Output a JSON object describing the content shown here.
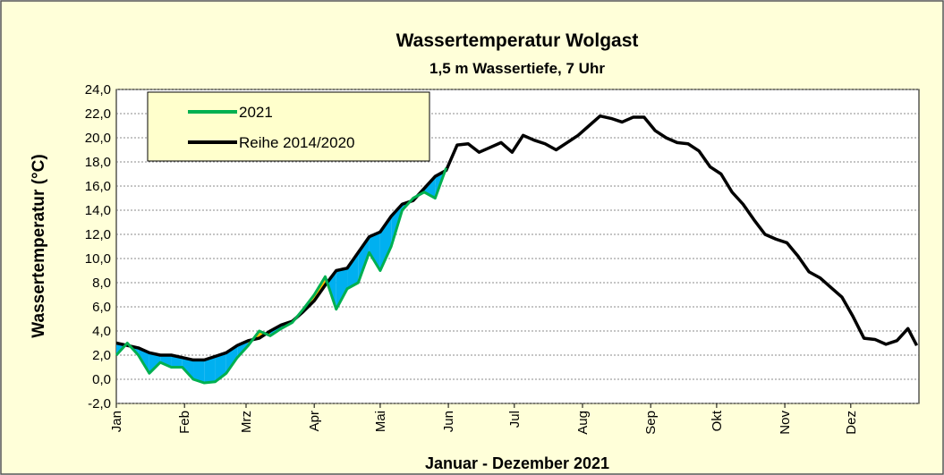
{
  "chart_data": {
    "type": "line",
    "title": "Wassertemperatur Wolgast",
    "subtitle": "1,5 m Wassertiefe, 7 Uhr",
    "xlabel": "Januar - Dezember 2021",
    "ylabel": "Wassertemperatur (°C)",
    "x": [
      0,
      5,
      10,
      15,
      20,
      25,
      30,
      35,
      40,
      45,
      50,
      55,
      60,
      65,
      70,
      75,
      80,
      85,
      90,
      95,
      100,
      105,
      110,
      115,
      120,
      125,
      130,
      135,
      140,
      145,
      150,
      155,
      160,
      165,
      170,
      175,
      180,
      185,
      190,
      195,
      200,
      205,
      210,
      215,
      220,
      225,
      230,
      235,
      240,
      245,
      250,
      255,
      260,
      265,
      270,
      275,
      280,
      285,
      290,
      295,
      300,
      305,
      310,
      315,
      320,
      325,
      330,
      335,
      340,
      345,
      350,
      355,
      360,
      364
    ],
    "xlim": [
      0,
      365
    ],
    "xticks": [
      {
        "value": 0,
        "label": "Jan"
      },
      {
        "value": 31,
        "label": "Feb"
      },
      {
        "value": 59,
        "label": "Mrz"
      },
      {
        "value": 90,
        "label": "Apr"
      },
      {
        "value": 120,
        "label": "Mai"
      },
      {
        "value": 151,
        "label": "Jun"
      },
      {
        "value": 181,
        "label": "Jul"
      },
      {
        "value": 212,
        "label": "Aug"
      },
      {
        "value": 243,
        "label": "Sep"
      },
      {
        "value": 273,
        "label": "Okt"
      },
      {
        "value": 304,
        "label": "Nov"
      },
      {
        "value": 334,
        "label": "Dez"
      }
    ],
    "ylim": [
      -2,
      24
    ],
    "yticks": [
      {
        "value": -2,
        "label": "-2,0"
      },
      {
        "value": 0,
        "label": "0,0"
      },
      {
        "value": 2,
        "label": "2,0"
      },
      {
        "value": 4,
        "label": "4,0"
      },
      {
        "value": 6,
        "label": "6,0"
      },
      {
        "value": 8,
        "label": "8,0"
      },
      {
        "value": 10,
        "label": "10,0"
      },
      {
        "value": 12,
        "label": "12,0"
      },
      {
        "value": 14,
        "label": "14,0"
      },
      {
        "value": 16,
        "label": "16,0"
      },
      {
        "value": 18,
        "label": "18,0"
      },
      {
        "value": 20,
        "label": "20,0"
      },
      {
        "value": 22,
        "label": "22,0"
      },
      {
        "value": 24,
        "label": "24,0"
      }
    ],
    "grid": true,
    "legend": "upper left",
    "fill_colors": {
      "below": "#00b0f0",
      "above": "#ffc000"
    },
    "series": [
      {
        "name": "2021",
        "color": "#00b050",
        "values": [
          2.0,
          3.0,
          2.0,
          0.5,
          1.4,
          1.0,
          1.0,
          0.0,
          -0.3,
          -0.2,
          0.5,
          1.8,
          2.8,
          4.0,
          3.6,
          4.2,
          4.7,
          5.8,
          7.0,
          8.5,
          5.8,
          7.5,
          8.0,
          10.5,
          9.0,
          11.0,
          14.0,
          15.0,
          15.5,
          15.0,
          17.5,
          null,
          null,
          null,
          null,
          null,
          null,
          null,
          null,
          null,
          null,
          null,
          null,
          null,
          null,
          null,
          null,
          null,
          null,
          null,
          null,
          null,
          null,
          null,
          null,
          null,
          null,
          null,
          null,
          null,
          null,
          null,
          null,
          null,
          null,
          null,
          null,
          null,
          null,
          null,
          null,
          null,
          null,
          null
        ]
      },
      {
        "name": "Reihe 2014/2020",
        "color": "#000000",
        "values": [
          3.0,
          2.8,
          2.6,
          2.2,
          2.0,
          2.0,
          1.8,
          1.6,
          1.6,
          1.9,
          2.2,
          2.8,
          3.2,
          3.4,
          4.0,
          4.5,
          4.8,
          5.6,
          6.5,
          7.8,
          9.0,
          9.2,
          10.5,
          11.8,
          12.2,
          13.5,
          14.5,
          14.8,
          15.8,
          16.8,
          17.3,
          19.4,
          19.5,
          18.8,
          19.2,
          19.6,
          18.8,
          20.2,
          19.8,
          19.5,
          19.0,
          19.6,
          20.2,
          21.0,
          21.8,
          21.6,
          21.3,
          21.7,
          21.7,
          20.6,
          20.0,
          19.6,
          19.5,
          18.9,
          17.6,
          17.0,
          15.5,
          14.5,
          13.2,
          12.0,
          11.6,
          11.3,
          10.2,
          8.9,
          8.4,
          7.6,
          6.8,
          5.2,
          3.4,
          3.3,
          2.9,
          3.2,
          4.2,
          2.8
        ]
      }
    ]
  }
}
